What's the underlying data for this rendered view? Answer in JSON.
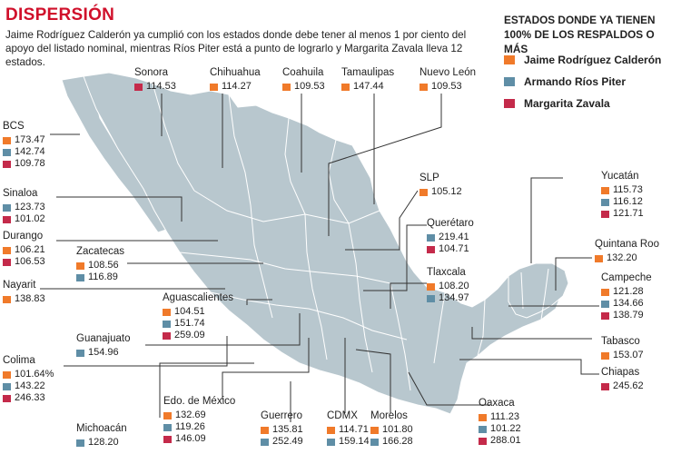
{
  "title": "DISPERSIÓN",
  "subtitle": "Jaime Rodríguez Calderón ya cumplió con los estados donde debe tener al menos 1 por ciento del apoyo del listado nominal, mientras Ríos Piter está a punto de lograrlo y Margarita Zavala lleva 12 estados.",
  "legend": {
    "title_line1": "ESTADOS DONDE YA TIENEN",
    "title_line2": "100% DE LOS RESPALDOS O MÁS",
    "items": [
      {
        "key": "jrc",
        "label": "Jaime Rodríguez Calderón",
        "color": "#f07a2a"
      },
      {
        "key": "arp",
        "label": "Armando Ríos Piter",
        "color": "#5f8ea6"
      },
      {
        "key": "mz",
        "label": "Margarita Zavala",
        "color": "#c42a4a"
      }
    ]
  },
  "colors": {
    "title": "#d0102b",
    "map_fill": "#b8c7ce",
    "map_stroke": "#ffffff",
    "leader": "#333333"
  },
  "states": [
    {
      "id": "sonora",
      "name": "Sonora",
      "values": [
        {
          "c": "mz",
          "v": "114.53"
        }
      ]
    },
    {
      "id": "chihuahua",
      "name": "Chihuahua",
      "values": [
        {
          "c": "jrc",
          "v": "114.27"
        }
      ]
    },
    {
      "id": "coahuila",
      "name": "Coahuila",
      "values": [
        {
          "c": "jrc",
          "v": "109.53"
        }
      ]
    },
    {
      "id": "tamaulipas",
      "name": "Tamaulipas",
      "values": [
        {
          "c": "jrc",
          "v": "147.44"
        }
      ]
    },
    {
      "id": "nuevo-leon",
      "name": "Nuevo León",
      "values": [
        {
          "c": "jrc",
          "v": "109.53"
        }
      ]
    },
    {
      "id": "bcs",
      "name": "BCS",
      "values": [
        {
          "c": "jrc",
          "v": "173.47"
        },
        {
          "c": "arp",
          "v": "142.74"
        },
        {
          "c": "mz",
          "v": "109.78"
        }
      ]
    },
    {
      "id": "sinaloa",
      "name": "Sinaloa",
      "values": [
        {
          "c": "arp",
          "v": "123.73"
        },
        {
          "c": "mz",
          "v": "101.02"
        }
      ]
    },
    {
      "id": "durango",
      "name": "Durango",
      "values": [
        {
          "c": "jrc",
          "v": "106.21"
        },
        {
          "c": "mz",
          "v": "106.53"
        }
      ]
    },
    {
      "id": "zacatecas",
      "name": "Zacatecas",
      "values": [
        {
          "c": "jrc",
          "v": "108.56"
        },
        {
          "c": "arp",
          "v": "116.89"
        }
      ]
    },
    {
      "id": "nayarit",
      "name": "Nayarit",
      "values": [
        {
          "c": "jrc",
          "v": "138.83"
        }
      ]
    },
    {
      "id": "aguascalientes",
      "name": "Aguascalientes",
      "values": [
        {
          "c": "jrc",
          "v": "104.51"
        },
        {
          "c": "arp",
          "v": "151.74"
        },
        {
          "c": "mz",
          "v": "259.09"
        }
      ]
    },
    {
      "id": "guanajuato",
      "name": "Guanajuato",
      "values": [
        {
          "c": "arp",
          "v": "154.96"
        }
      ]
    },
    {
      "id": "colima",
      "name": "Colima",
      "values": [
        {
          "c": "jrc",
          "v": "101.64%"
        },
        {
          "c": "arp",
          "v": "143.22"
        },
        {
          "c": "mz",
          "v": "246.33"
        }
      ]
    },
    {
      "id": "michoacan",
      "name": "Michoacán",
      "values": [
        {
          "c": "arp",
          "v": "128.20"
        }
      ]
    },
    {
      "id": "edomex",
      "name": "Edo. de México",
      "values": [
        {
          "c": "jrc",
          "v": "132.69"
        },
        {
          "c": "arp",
          "v": "119.26"
        },
        {
          "c": "mz",
          "v": "146.09"
        }
      ]
    },
    {
      "id": "guerrero",
      "name": "Guerrero",
      "values": [
        {
          "c": "jrc",
          "v": "135.81"
        },
        {
          "c": "arp",
          "v": "252.49"
        }
      ]
    },
    {
      "id": "cdmx",
      "name": "CDMX",
      "values": [
        {
          "c": "jrc",
          "v": "114.71"
        },
        {
          "c": "arp",
          "v": "159.14"
        }
      ]
    },
    {
      "id": "morelos",
      "name": "Morelos",
      "values": [
        {
          "c": "jrc",
          "v": "101.80"
        },
        {
          "c": "arp",
          "v": "166.28"
        }
      ]
    },
    {
      "id": "oaxaca",
      "name": "Oaxaca",
      "values": [
        {
          "c": "jrc",
          "v": "111.23"
        },
        {
          "c": "arp",
          "v": "101.22"
        },
        {
          "c": "mz",
          "v": "288.01"
        }
      ]
    },
    {
      "id": "slp",
      "name": "SLP",
      "values": [
        {
          "c": "jrc",
          "v": "105.12"
        }
      ]
    },
    {
      "id": "queretaro",
      "name": "Querétaro",
      "values": [
        {
          "c": "arp",
          "v": "219.41"
        },
        {
          "c": "mz",
          "v": "104.71"
        }
      ]
    },
    {
      "id": "tlaxcala",
      "name": "Tlaxcala",
      "values": [
        {
          "c": "jrc",
          "v": "108.20"
        },
        {
          "c": "arp",
          "v": "134.97"
        }
      ]
    },
    {
      "id": "yucatan",
      "name": "Yucatán",
      "values": [
        {
          "c": "jrc",
          "v": "115.73"
        },
        {
          "c": "arp",
          "v": "116.12"
        },
        {
          "c": "mz",
          "v": "121.71"
        }
      ]
    },
    {
      "id": "quintana-roo",
      "name": "Quintana Roo",
      "values": [
        {
          "c": "jrc",
          "v": "132.20"
        }
      ]
    },
    {
      "id": "campeche",
      "name": "Campeche",
      "values": [
        {
          "c": "jrc",
          "v": "121.28"
        },
        {
          "c": "arp",
          "v": "134.66"
        },
        {
          "c": "mz",
          "v": "138.79"
        }
      ]
    },
    {
      "id": "tabasco",
      "name": "Tabasco",
      "values": [
        {
          "c": "jrc",
          "v": "153.07"
        }
      ]
    },
    {
      "id": "chiapas",
      "name": "Chiapas",
      "values": [
        {
          "c": "mz",
          "v": "245.62"
        }
      ]
    }
  ]
}
